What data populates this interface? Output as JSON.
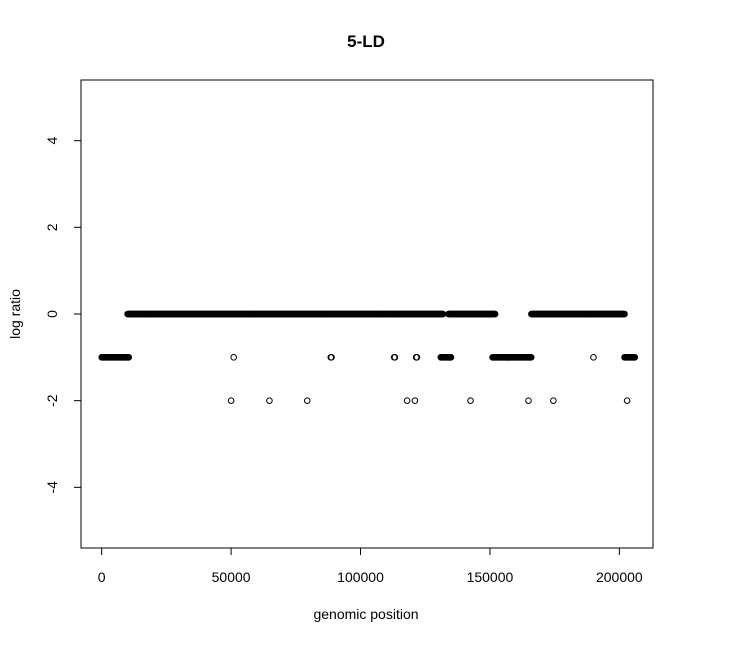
{
  "chart_data": {
    "type": "scatter",
    "title": "5-LD",
    "xlabel": "genomic position",
    "ylabel": "log ratio",
    "xlim": [
      -8000,
      213000
    ],
    "ylim": [
      -5.4,
      5.4
    ],
    "x_ticks": [
      0,
      50000,
      100000,
      150000,
      200000
    ],
    "x_tick_labels": [
      "0",
      "50000",
      "100000",
      "150000",
      "200000"
    ],
    "y_ticks": [
      -4,
      -2,
      0,
      2,
      4
    ],
    "y_tick_labels": [
      "-4",
      "-2",
      "0",
      "2",
      "4"
    ],
    "marker": "open-circle",
    "marker_color": "#000000",
    "grid": false,
    "dense_segments": [
      {
        "x_start": 0,
        "x_end": 10500,
        "y": -1
      },
      {
        "x_start": 10000,
        "x_end": 132000,
        "y": 0
      },
      {
        "x_start": 131000,
        "x_end": 135000,
        "y": -1
      },
      {
        "x_start": 134000,
        "x_end": 152000,
        "y": 0
      },
      {
        "x_start": 151000,
        "x_end": 166000,
        "y": -1
      },
      {
        "x_start": 166000,
        "x_end": 202000,
        "y": 0
      },
      {
        "x_start": 202000,
        "x_end": 206000,
        "y": -1
      }
    ],
    "points": [
      {
        "x": 51000,
        "y": -1
      },
      {
        "x": 88500,
        "y": -1
      },
      {
        "x": 88800,
        "y": -1
      },
      {
        "x": 113000,
        "y": -1
      },
      {
        "x": 113300,
        "y": -1
      },
      {
        "x": 121500,
        "y": -1
      },
      {
        "x": 121800,
        "y": -1
      },
      {
        "x": 190000,
        "y": -1
      },
      {
        "x": 50000,
        "y": -2
      },
      {
        "x": 64800,
        "y": -2
      },
      {
        "x": 79400,
        "y": -2
      },
      {
        "x": 118000,
        "y": -2
      },
      {
        "x": 121000,
        "y": -2
      },
      {
        "x": 142500,
        "y": -2
      },
      {
        "x": 164900,
        "y": -2
      },
      {
        "x": 174500,
        "y": -2
      },
      {
        "x": 203000,
        "y": -2
      }
    ]
  }
}
